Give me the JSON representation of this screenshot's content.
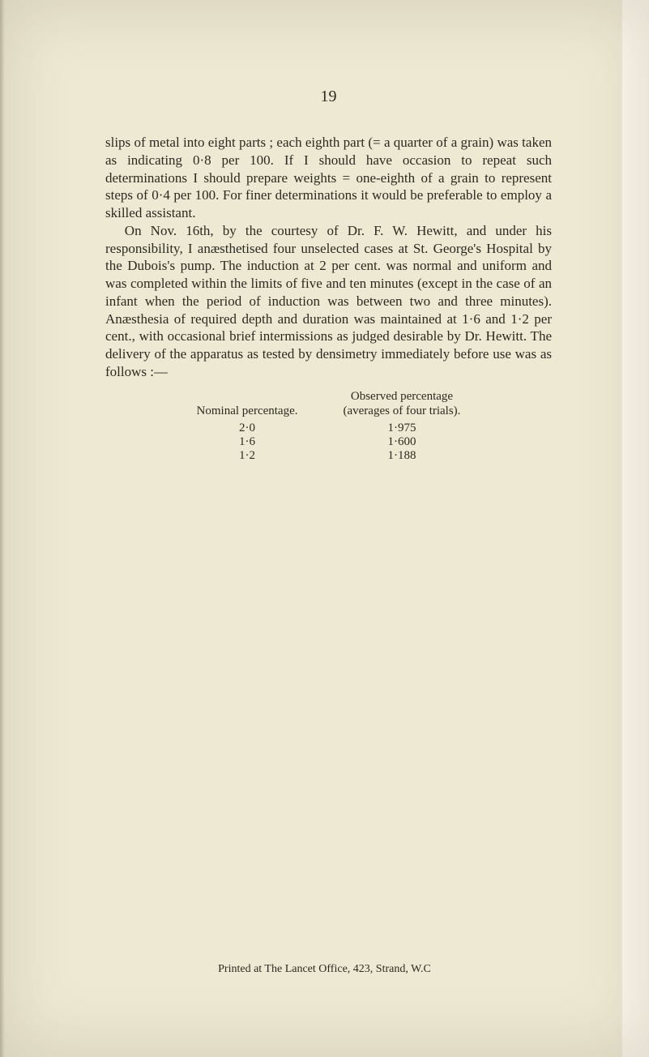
{
  "colors": {
    "page_bg": "#eee9d3",
    "sidebar_bg": "#fbf7eb",
    "text": "#2b2a22"
  },
  "typography": {
    "body_fontsize_pt": 13,
    "header_fontsize_pt": 15,
    "table_fontsize_pt": 11,
    "footer_fontsize_pt": 10,
    "font_family": "serif"
  },
  "page_number": "19",
  "paragraphs": {
    "p1": "slips of metal into eight parts ; each eighth part (= a quarter of a grain) was taken as indicating 0·8 per 100. If I should have occasion to repeat such determinations I should prepare weights = one-eighth of a grain to represent steps of 0·4 per 100. For finer determinations it would be preferable to employ a skilled assistant.",
    "p2": "On Nov. 16th, by the courtesy of Dr. F. W. Hewitt, and under his responsibility, I anæsthetised four unselected cases at St. George's Hospital by the Dubois's pump. The induction at 2 per cent. was normal and uniform and was completed within the limits of five and ten minutes (except in the case of an infant when the period of induction was between two and three minutes). Anæsthesia of required depth and duration was maintained at 1·6 and 1·2 per cent., with occasional brief intermissions as judged desirable by Dr. Hewitt. The delivery of the apparatus as tested by densimetry immediately before use was as follows :—"
  },
  "table": {
    "headers": {
      "col1": "Nominal percentage.",
      "col2_line1": "Observed percentage",
      "col2_line2": "(averages of four trials)."
    },
    "rows": [
      {
        "nominal": "2·0",
        "observed": "1·975"
      },
      {
        "nominal": "1·6",
        "observed": "1·600"
      },
      {
        "nominal": "1·2",
        "observed": "1·188"
      }
    ]
  },
  "footer": "Printed at The Lancet Office, 423, Strand, W.C"
}
